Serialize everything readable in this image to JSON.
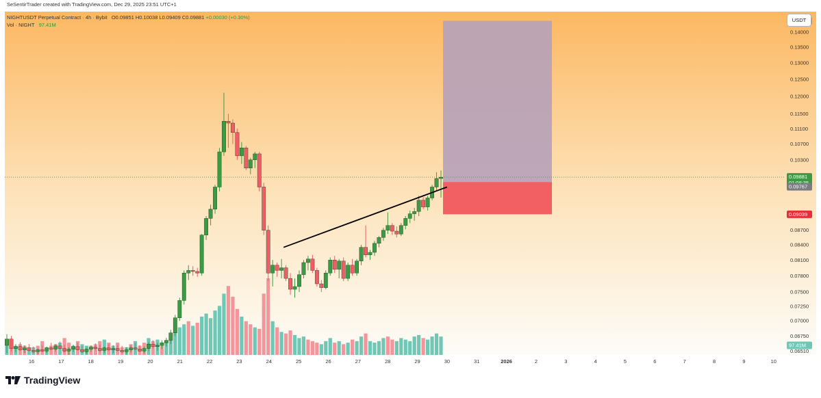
{
  "header": {
    "credit": "SeSentirTrader created with TradingView.com, Dec 29, 2025 23:51 UTC+1",
    "symbol": "NIGHTUSDT Perpetual Contract · 4h · Bybit",
    "ohlc": "O0.09851 H0.10038 L0.09409 C0.09881",
    "change": "+0.00030 (+0.30%)",
    "vol_label": "Vol · NIGHT",
    "vol_value": "97.41M"
  },
  "currency_button": "USDT",
  "badges": {
    "target": "0.14379",
    "last": "0.09881",
    "countdown": "01:08:35",
    "entry": "0.09767",
    "stop": "0.09039",
    "volume": "97.41M"
  },
  "brand": "TradingView",
  "colors": {
    "bg_top": "#fcb862",
    "bg_bottom": "#fdfcf8",
    "bull": "#3d9a44",
    "bear": "#ec5f64",
    "vol_bull": "#6fc7b6",
    "vol_bear": "#f3959a",
    "target_zone": "#b7a2b8",
    "stop_zone": "#f26064",
    "trendline": "#000000",
    "target_badge": "#a47fc9",
    "last_badge": "#3d9a44",
    "entry_badge": "#7b7b82",
    "stop_badge": "#e5303a"
  },
  "chart_data": {
    "type": "candlestick",
    "timeframe": "4h",
    "y_axis": {
      "ticks": [
        "0.14000",
        "0.13500",
        "0.13000",
        "0.12500",
        "0.12000",
        "0.11500",
        "0.11100",
        "0.10700",
        "0.10300",
        "0.08700",
        "0.08400",
        "0.08100",
        "0.07800",
        "0.07500",
        "0.07250",
        "0.07000",
        "0.06750",
        "0.06510"
      ],
      "scale": "log",
      "range": [
        0.0645,
        0.147
      ]
    },
    "x_axis": {
      "ticks": [
        "16",
        "17",
        "18",
        "19",
        "20",
        "21",
        "22",
        "23",
        "24",
        "25",
        "26",
        "27",
        "28",
        "29",
        "30",
        "31",
        "2026",
        "2",
        "3",
        "4",
        "5",
        "6",
        "7",
        "8",
        "9",
        "10"
      ]
    },
    "candles": [
      [
        0.066,
        0.0678,
        0.0648,
        0.067
      ],
      [
        0.067,
        0.0675,
        0.065,
        0.0655
      ],
      [
        0.0655,
        0.0662,
        0.0649,
        0.0658
      ],
      [
        0.0658,
        0.0665,
        0.0651,
        0.0653
      ],
      [
        0.0653,
        0.066,
        0.0648,
        0.0656
      ],
      [
        0.0656,
        0.0662,
        0.065,
        0.0652
      ],
      [
        0.0652,
        0.0658,
        0.0647,
        0.065
      ],
      [
        0.065,
        0.0655,
        0.0646,
        0.0653
      ],
      [
        0.0653,
        0.066,
        0.0649,
        0.0651
      ],
      [
        0.0651,
        0.0658,
        0.0648,
        0.0656
      ],
      [
        0.0656,
        0.0664,
        0.0652,
        0.0654
      ],
      [
        0.0654,
        0.0662,
        0.065,
        0.0659
      ],
      [
        0.0659,
        0.0666,
        0.0653,
        0.0655
      ],
      [
        0.0655,
        0.0661,
        0.0648,
        0.0651
      ],
      [
        0.0651,
        0.0657,
        0.0645,
        0.0654
      ],
      [
        0.0654,
        0.0661,
        0.065,
        0.0658
      ],
      [
        0.0658,
        0.0664,
        0.0652,
        0.0653
      ],
      [
        0.0653,
        0.0659,
        0.0648,
        0.065
      ],
      [
        0.065,
        0.0656,
        0.0646,
        0.0654
      ],
      [
        0.0654,
        0.066,
        0.065,
        0.0657
      ],
      [
        0.0657,
        0.0663,
        0.0652,
        0.0655
      ],
      [
        0.0655,
        0.0661,
        0.0649,
        0.0652
      ],
      [
        0.0652,
        0.0658,
        0.0648,
        0.0656
      ],
      [
        0.0656,
        0.0662,
        0.0651,
        0.0653
      ],
      [
        0.0653,
        0.066,
        0.0648,
        0.0655
      ],
      [
        0.0655,
        0.0661,
        0.065,
        0.0652
      ],
      [
        0.0652,
        0.0659,
        0.0647,
        0.065
      ],
      [
        0.065,
        0.0657,
        0.0646,
        0.0653
      ],
      [
        0.0653,
        0.066,
        0.0649,
        0.0656
      ],
      [
        0.0656,
        0.0663,
        0.0652,
        0.0654
      ],
      [
        0.0654,
        0.066,
        0.0649,
        0.0651
      ],
      [
        0.0651,
        0.0658,
        0.0647,
        0.0655
      ],
      [
        0.0655,
        0.0665,
        0.0651,
        0.0662
      ],
      [
        0.0662,
        0.0668,
        0.0655,
        0.0658
      ],
      [
        0.0658,
        0.0664,
        0.0652,
        0.066
      ],
      [
        0.066,
        0.0668,
        0.0654,
        0.0664
      ],
      [
        0.0664,
        0.0672,
        0.0658,
        0.0668
      ],
      [
        0.0668,
        0.0685,
        0.0662,
        0.068
      ],
      [
        0.068,
        0.071,
        0.0675,
        0.0705
      ],
      [
        0.0705,
        0.074,
        0.07,
        0.0735
      ],
      [
        0.0735,
        0.079,
        0.0728,
        0.0785
      ],
      [
        0.0785,
        0.08,
        0.0772,
        0.079
      ],
      [
        0.079,
        0.0798,
        0.078,
        0.0788
      ],
      [
        0.0788,
        0.0795,
        0.0778,
        0.0785
      ],
      [
        0.0785,
        0.0862,
        0.078,
        0.086
      ],
      [
        0.086,
        0.09,
        0.085,
        0.0895
      ],
      [
        0.0895,
        0.0925,
        0.088,
        0.0915
      ],
      [
        0.0915,
        0.097,
        0.0905,
        0.0965
      ],
      [
        0.0965,
        0.106,
        0.0955,
        0.105
      ],
      [
        0.105,
        0.121,
        0.104,
        0.113
      ],
      [
        0.113,
        0.115,
        0.106,
        0.1125
      ],
      [
        0.1125,
        0.1135,
        0.107,
        0.11
      ],
      [
        0.11,
        0.111,
        0.103,
        0.104
      ],
      [
        0.104,
        0.1075,
        0.102,
        0.106
      ],
      [
        0.106,
        0.1065,
        0.1005,
        0.101
      ],
      [
        0.101,
        0.1035,
        0.0995,
        0.103
      ],
      [
        0.103,
        0.105,
        0.101,
        0.1045
      ],
      [
        0.1045,
        0.105,
        0.0955,
        0.0965
      ],
      [
        0.0965,
        0.0975,
        0.086,
        0.087
      ],
      [
        0.087,
        0.088,
        0.077,
        0.0785
      ],
      [
        0.0785,
        0.081,
        0.076,
        0.08
      ],
      [
        0.08,
        0.0805,
        0.0778,
        0.079
      ],
      [
        0.079,
        0.0812,
        0.0775,
        0.0795
      ],
      [
        0.0795,
        0.08,
        0.077,
        0.0775
      ],
      [
        0.0775,
        0.0785,
        0.0745,
        0.0755
      ],
      [
        0.0755,
        0.0775,
        0.074,
        0.076
      ],
      [
        0.076,
        0.079,
        0.075,
        0.0782
      ],
      [
        0.0782,
        0.081,
        0.0775,
        0.0805
      ],
      [
        0.0805,
        0.0818,
        0.079,
        0.0812
      ],
      [
        0.0812,
        0.082,
        0.0785,
        0.079
      ],
      [
        0.079,
        0.0795,
        0.076,
        0.0765
      ],
      [
        0.0765,
        0.0772,
        0.075,
        0.0758
      ],
      [
        0.0758,
        0.079,
        0.0755,
        0.0785
      ],
      [
        0.0785,
        0.0815,
        0.078,
        0.081
      ],
      [
        0.081,
        0.0818,
        0.0785,
        0.0792
      ],
      [
        0.0792,
        0.0812,
        0.0775,
        0.0808
      ],
      [
        0.0808,
        0.0815,
        0.077,
        0.0775
      ],
      [
        0.0775,
        0.0805,
        0.077,
        0.08
      ],
      [
        0.08,
        0.0812,
        0.078,
        0.0785
      ],
      [
        0.0785,
        0.0812,
        0.078,
        0.0808
      ],
      [
        0.0808,
        0.084,
        0.08,
        0.0835
      ],
      [
        0.0835,
        0.088,
        0.0815,
        0.082
      ],
      [
        0.082,
        0.083,
        0.081,
        0.0825
      ],
      [
        0.0825,
        0.0848,
        0.0818,
        0.0843
      ],
      [
        0.0843,
        0.0858,
        0.0835,
        0.0855
      ],
      [
        0.0855,
        0.0875,
        0.0848,
        0.087
      ],
      [
        0.087,
        0.0908,
        0.0862,
        0.088
      ],
      [
        0.088,
        0.0885,
        0.086,
        0.0868
      ],
      [
        0.0868,
        0.0878,
        0.0855,
        0.0862
      ],
      [
        0.0862,
        0.0885,
        0.0858,
        0.088
      ],
      [
        0.088,
        0.09,
        0.0872,
        0.0895
      ],
      [
        0.0895,
        0.0912,
        0.0885,
        0.0905
      ],
      [
        0.0905,
        0.0918,
        0.089,
        0.091
      ],
      [
        0.091,
        0.0945,
        0.09,
        0.0935
      ],
      [
        0.0935,
        0.0942,
        0.0915,
        0.092
      ],
      [
        0.092,
        0.0945,
        0.0912,
        0.094
      ],
      [
        0.094,
        0.097,
        0.0935,
        0.0965
      ],
      [
        0.0965,
        0.1,
        0.0955,
        0.0985
      ],
      [
        0.0985,
        0.1004,
        0.0941,
        0.0988
      ]
    ],
    "volumes": [
      [
        10,
        0
      ],
      [
        8,
        1
      ],
      [
        6,
        0
      ],
      [
        7,
        1
      ],
      [
        6,
        1
      ],
      [
        5,
        0
      ],
      [
        5,
        0
      ],
      [
        6,
        1
      ],
      [
        9,
        1
      ],
      [
        5,
        0
      ],
      [
        6,
        1
      ],
      [
        7,
        1
      ],
      [
        8,
        0
      ],
      [
        11,
        1
      ],
      [
        8,
        1
      ],
      [
        6,
        0
      ],
      [
        9,
        1
      ],
      [
        7,
        0
      ],
      [
        6,
        0
      ],
      [
        6,
        1
      ],
      [
        7,
        1
      ],
      [
        9,
        1
      ],
      [
        10,
        0
      ],
      [
        8,
        1
      ],
      [
        6,
        0
      ],
      [
        8,
        1
      ],
      [
        5,
        1
      ],
      [
        5,
        0
      ],
      [
        7,
        1
      ],
      [
        9,
        0
      ],
      [
        6,
        1
      ],
      [
        8,
        1
      ],
      [
        11,
        0
      ],
      [
        9,
        1
      ],
      [
        10,
        0
      ],
      [
        8,
        1
      ],
      [
        9,
        0
      ],
      [
        12,
        0
      ],
      [
        15,
        0
      ],
      [
        18,
        0
      ],
      [
        20,
        0
      ],
      [
        22,
        1
      ],
      [
        19,
        0
      ],
      [
        21,
        1
      ],
      [
        25,
        0
      ],
      [
        27,
        0
      ],
      [
        24,
        0
      ],
      [
        29,
        0
      ],
      [
        32,
        0
      ],
      [
        40,
        0
      ],
      [
        45,
        1
      ],
      [
        38,
        1
      ],
      [
        30,
        1
      ],
      [
        25,
        0
      ],
      [
        22,
        1
      ],
      [
        20,
        1
      ],
      [
        18,
        0
      ],
      [
        17,
        1
      ],
      [
        40,
        1
      ],
      [
        50,
        1
      ],
      [
        22,
        0
      ],
      [
        18,
        1
      ],
      [
        15,
        0
      ],
      [
        14,
        1
      ],
      [
        16,
        1
      ],
      [
        13,
        0
      ],
      [
        11,
        0
      ],
      [
        12,
        0
      ],
      [
        10,
        1
      ],
      [
        9,
        1
      ],
      [
        8,
        1
      ],
      [
        7,
        0
      ],
      [
        9,
        0
      ],
      [
        11,
        0
      ],
      [
        8,
        1
      ],
      [
        9,
        0
      ],
      [
        7,
        1
      ],
      [
        8,
        0
      ],
      [
        10,
        1
      ],
      [
        9,
        0
      ],
      [
        12,
        0
      ],
      [
        14,
        1
      ],
      [
        9,
        0
      ],
      [
        8,
        0
      ],
      [
        9,
        0
      ],
      [
        11,
        0
      ],
      [
        12,
        1
      ],
      [
        10,
        1
      ],
      [
        9,
        0
      ],
      [
        11,
        0
      ],
      [
        10,
        0
      ],
      [
        9,
        0
      ],
      [
        12,
        0
      ],
      [
        13,
        0
      ],
      [
        11,
        1
      ],
      [
        10,
        0
      ],
      [
        12,
        0
      ],
      [
        14,
        0
      ],
      [
        12,
        0
      ]
    ],
    "trendline": {
      "from": [
        25,
        0.0835
      ],
      "to": [
        30,
        0.0965
      ]
    },
    "position": {
      "type": "long",
      "entry": 0.09767,
      "target": 0.14379,
      "stop": 0.09039
    },
    "last_price": 0.09881,
    "grid": false,
    "legend": "top-left"
  }
}
